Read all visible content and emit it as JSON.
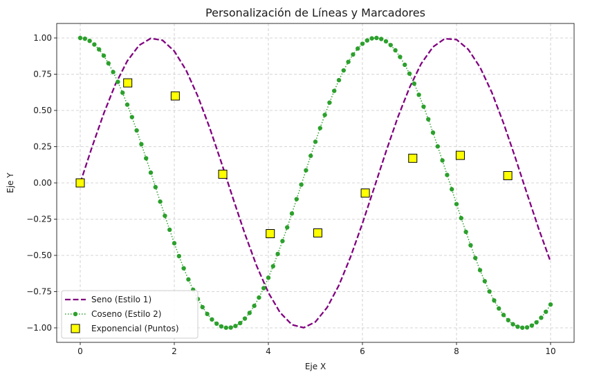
{
  "chart_data": {
    "type": "line",
    "title": "Personalización de Líneas y Marcadores",
    "xlabel": "Eje X",
    "ylabel": "Eje Y",
    "xlim": [
      -0.5,
      10.5
    ],
    "ylim": [
      -1.1,
      1.1
    ],
    "grid": true,
    "legend_position": "lower-left",
    "xticks": [
      0,
      2,
      4,
      6,
      8,
      10
    ],
    "xtick_labels": [
      "0",
      "2",
      "4",
      "6",
      "8",
      "10"
    ],
    "yticks": [
      1.0,
      0.75,
      0.5,
      0.25,
      0.0,
      -0.25,
      -0.5,
      -0.75,
      -1.0
    ],
    "ytick_labels": [
      "1.00",
      "0.75",
      "0.50",
      "0.25",
      "0.00",
      "−0.25",
      "−0.50",
      "−0.75",
      "−1.00"
    ],
    "series": [
      {
        "name": "Seno (Estilo 1)",
        "style": "dashed-line",
        "color": "#800080",
        "x": [
          0.0,
          0.25,
          0.5,
          0.75,
          1.0,
          1.25,
          1.5,
          1.75,
          2.0,
          2.25,
          2.5,
          2.75,
          3.0,
          3.25,
          3.5,
          3.75,
          4.0,
          4.25,
          4.5,
          4.75,
          5.0,
          5.25,
          5.5,
          5.75,
          6.0,
          6.25,
          6.5,
          6.75,
          7.0,
          7.25,
          7.5,
          7.75,
          8.0,
          8.25,
          8.5,
          8.75,
          9.0,
          9.25,
          9.5,
          9.75,
          10.0
        ],
        "values": [
          0.0,
          0.247,
          0.479,
          0.682,
          0.841,
          0.949,
          0.997,
          0.984,
          0.909,
          0.778,
          0.598,
          0.382,
          0.141,
          -0.108,
          -0.351,
          -0.572,
          -0.757,
          -0.895,
          -0.978,
          -0.999,
          -0.959,
          -0.859,
          -0.706,
          -0.508,
          -0.279,
          -0.033,
          0.215,
          0.451,
          0.657,
          0.823,
          0.938,
          0.995,
          0.989,
          0.921,
          0.798,
          0.625,
          0.412,
          0.174,
          -0.075,
          -0.319,
          -0.544
        ]
      },
      {
        "name": "Coseno (Estilo 2)",
        "style": "dotted-line-with-circles",
        "color": "#2ca02c",
        "x": [
          0.0,
          0.1,
          0.2,
          0.3,
          0.4,
          0.5,
          0.6,
          0.7,
          0.8,
          0.9,
          1.0,
          1.1,
          1.2,
          1.3,
          1.4,
          1.5,
          1.6,
          1.7,
          1.8,
          1.9,
          2.0,
          2.1,
          2.2,
          2.3,
          2.4,
          2.5,
          2.6,
          2.7,
          2.8,
          2.9,
          3.0,
          3.1,
          3.2,
          3.3,
          3.4,
          3.5,
          3.6,
          3.7,
          3.8,
          3.9,
          4.0,
          4.1,
          4.2,
          4.3,
          4.4,
          4.5,
          4.6,
          4.7,
          4.8,
          4.9,
          5.0,
          5.1,
          5.2,
          5.3,
          5.4,
          5.5,
          5.6,
          5.7,
          5.8,
          5.9,
          6.0,
          6.1,
          6.2,
          6.3,
          6.4,
          6.5,
          6.6,
          6.7,
          6.8,
          6.9,
          7.0,
          7.1,
          7.2,
          7.3,
          7.4,
          7.5,
          7.6,
          7.7,
          7.8,
          7.9,
          8.0,
          8.1,
          8.2,
          8.3,
          8.4,
          8.5,
          8.6,
          8.7,
          8.8,
          8.9,
          9.0,
          9.1,
          9.2,
          9.3,
          9.4,
          9.5,
          9.6,
          9.7,
          9.8,
          9.9,
          10.0
        ],
        "values": [
          1.0,
          0.995,
          0.98,
          0.955,
          0.921,
          0.878,
          0.825,
          0.765,
          0.697,
          0.622,
          0.54,
          0.454,
          0.362,
          0.267,
          0.17,
          0.071,
          -0.029,
          -0.129,
          -0.227,
          -0.323,
          -0.416,
          -0.505,
          -0.589,
          -0.666,
          -0.737,
          -0.801,
          -0.857,
          -0.904,
          -0.942,
          -0.971,
          -0.99,
          -0.999,
          -0.998,
          -0.987,
          -0.967,
          -0.936,
          -0.897,
          -0.848,
          -0.791,
          -0.726,
          -0.654,
          -0.575,
          -0.49,
          -0.401,
          -0.307,
          -0.211,
          -0.112,
          -0.012,
          0.087,
          0.187,
          0.284,
          0.378,
          0.469,
          0.554,
          0.635,
          0.709,
          0.776,
          0.835,
          0.886,
          0.927,
          0.96,
          0.983,
          0.997,
          1.0,
          0.993,
          0.977,
          0.951,
          0.915,
          0.869,
          0.815,
          0.754,
          0.685,
          0.608,
          0.526,
          0.439,
          0.347,
          0.252,
          0.155,
          0.055,
          -0.044,
          -0.146,
          -0.243,
          -0.338,
          -0.43,
          -0.518,
          -0.602,
          -0.678,
          -0.749,
          -0.811,
          -0.866,
          -0.911,
          -0.947,
          -0.975,
          -0.992,
          -0.999,
          -0.997,
          -0.984,
          -0.962,
          -0.93,
          -0.889,
          -0.839
        ]
      },
      {
        "name": "Exponencial (Puntos)",
        "style": "square-markers",
        "color": "#ffff00",
        "edge_color": "#000000",
        "x": [
          0.0,
          1.01,
          2.02,
          3.03,
          4.04,
          5.05,
          6.06,
          7.07,
          8.08,
          9.09
        ],
        "values": [
          0.0,
          0.69,
          0.6,
          0.06,
          -0.35,
          -0.345,
          -0.07,
          0.17,
          0.19,
          0.05
        ]
      }
    ]
  }
}
